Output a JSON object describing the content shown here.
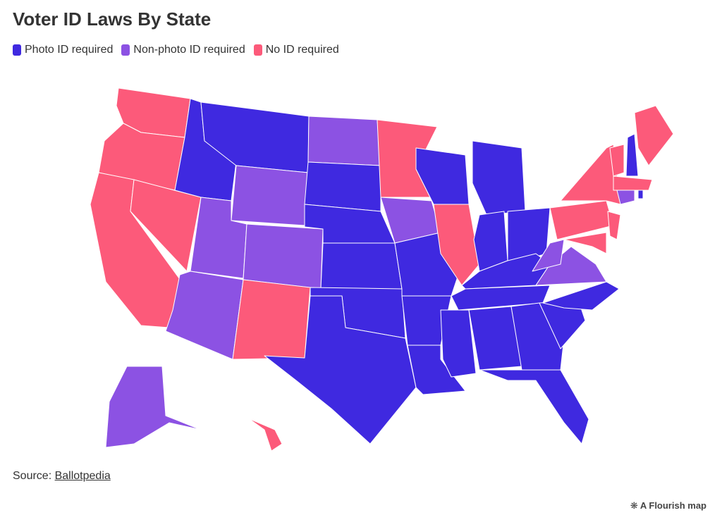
{
  "header": {
    "title": "Voter ID Laws By State"
  },
  "legend": [
    {
      "label": "Photo ID required",
      "color": "#3f29e0"
    },
    {
      "label": "Non-photo ID required",
      "color": "#8c52e3"
    },
    {
      "label": "No ID required",
      "color": "#fc5a7a"
    }
  ],
  "footer": {
    "source_label": "Source:",
    "source_link": "Ballotpedia",
    "credit": "A Flourish map"
  }
}
